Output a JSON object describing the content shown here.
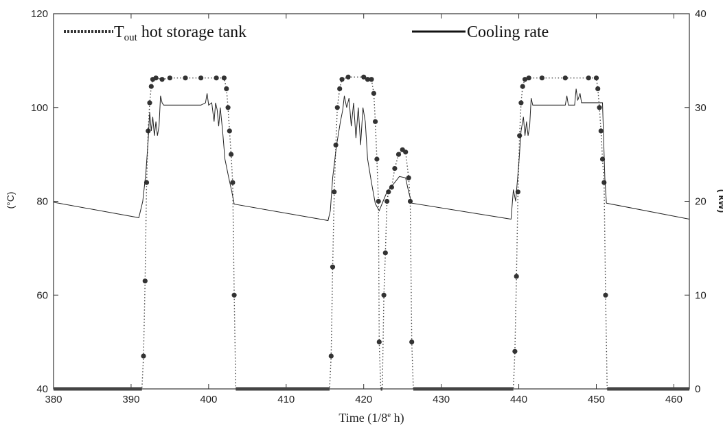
{
  "chart_data": {
    "type": "line",
    "xlabel": "Time (1/8",
    "xlabel_sup": "e",
    "xlabel_tail": " h)",
    "ylabel_left": "(°C)",
    "ylabel_right": "( kW)",
    "xlim": [
      380,
      462
    ],
    "ylim_left": [
      40,
      120
    ],
    "ylim_right": [
      0,
      40
    ],
    "x_ticks": [
      380,
      390,
      400,
      410,
      420,
      430,
      440,
      450,
      460
    ],
    "y_left_ticks": [
      40,
      60,
      80,
      100,
      120
    ],
    "y_right_ticks": [
      0,
      10,
      20,
      30,
      40
    ],
    "grid": false,
    "legend_placement": "top",
    "legend": {
      "tout_main": "T",
      "tout_sub": "out",
      "tout_tail": " hot storage tank",
      "cooling": "Cooling rate"
    },
    "series": [
      {
        "name": "Tout hot storage tank",
        "axis": "left",
        "style": "dotted",
        "points": [
          [
            380,
            40
          ],
          [
            391.4,
            40
          ],
          [
            391.6,
            47
          ],
          [
            391.8,
            63
          ],
          [
            392.0,
            84
          ],
          [
            392.2,
            95
          ],
          [
            392.4,
            101
          ],
          [
            392.6,
            104.5
          ],
          [
            392.8,
            106
          ],
          [
            393.2,
            106.3
          ],
          [
            394,
            106
          ],
          [
            395,
            106.3
          ],
          [
            397,
            106.3
          ],
          [
            399,
            106.3
          ],
          [
            401,
            106.3
          ],
          [
            402.0,
            106.3
          ],
          [
            402.3,
            104
          ],
          [
            402.5,
            100
          ],
          [
            402.7,
            95
          ],
          [
            402.9,
            90
          ],
          [
            403.1,
            84
          ],
          [
            403.3,
            60
          ],
          [
            403.5,
            40
          ],
          [
            415.6,
            40
          ],
          [
            415.8,
            47
          ],
          [
            416.0,
            66
          ],
          [
            416.2,
            82
          ],
          [
            416.4,
            92
          ],
          [
            416.6,
            100
          ],
          [
            416.9,
            104
          ],
          [
            417.2,
            106
          ],
          [
            418,
            106.5
          ],
          [
            420,
            106.5
          ],
          [
            420.5,
            106
          ],
          [
            421.0,
            106
          ],
          [
            421.3,
            103
          ],
          [
            421.5,
            97
          ],
          [
            421.7,
            89
          ],
          [
            421.9,
            80
          ],
          [
            422.0,
            50
          ],
          [
            422.2,
            40
          ],
          [
            422.4,
            40
          ],
          [
            422.6,
            60
          ],
          [
            422.8,
            69
          ],
          [
            423.0,
            80
          ],
          [
            423.2,
            82
          ],
          [
            423.6,
            83
          ],
          [
            424.0,
            87
          ],
          [
            424.5,
            90
          ],
          [
            425.0,
            91
          ],
          [
            425.4,
            90.5
          ],
          [
            425.8,
            85
          ],
          [
            426.0,
            80
          ],
          [
            426.2,
            50
          ],
          [
            426.4,
            40
          ],
          [
            439.3,
            40
          ],
          [
            439.5,
            48
          ],
          [
            439.7,
            64
          ],
          [
            439.9,
            82
          ],
          [
            440.1,
            94
          ],
          [
            440.3,
            101
          ],
          [
            440.5,
            104.5
          ],
          [
            440.8,
            106
          ],
          [
            441.3,
            106.3
          ],
          [
            443,
            106.3
          ],
          [
            446,
            106.3
          ],
          [
            449,
            106.3
          ],
          [
            450.0,
            106.3
          ],
          [
            450.2,
            104
          ],
          [
            450.4,
            100
          ],
          [
            450.6,
            95
          ],
          [
            450.8,
            89
          ],
          [
            451.0,
            84
          ],
          [
            451.2,
            60
          ],
          [
            451.4,
            40
          ],
          [
            462,
            40
          ]
        ]
      },
      {
        "name": "Cooling rate",
        "axis": "left",
        "style": "solid",
        "points": [
          [
            380,
            79.8
          ],
          [
            391.0,
            76.5
          ],
          [
            391.5,
            80
          ],
          [
            391.9,
            86
          ],
          [
            392.2,
            93
          ],
          [
            392.4,
            99
          ],
          [
            392.6,
            95
          ],
          [
            392.8,
            98
          ],
          [
            393.0,
            94
          ],
          [
            393.2,
            97
          ],
          [
            393.4,
            94
          ],
          [
            393.6,
            96
          ],
          [
            393.8,
            102.5
          ],
          [
            394.0,
            101
          ],
          [
            394.2,
            100.5
          ],
          [
            399,
            100.5
          ],
          [
            399.6,
            101
          ],
          [
            399.8,
            103
          ],
          [
            400.0,
            100.5
          ],
          [
            400.4,
            101
          ],
          [
            400.7,
            97
          ],
          [
            400.9,
            101
          ],
          [
            401.1,
            99.5
          ],
          [
            401.3,
            96
          ],
          [
            401.5,
            100
          ],
          [
            401.8,
            95
          ],
          [
            402.1,
            89
          ],
          [
            402.6,
            85
          ],
          [
            403.0,
            82
          ],
          [
            403.3,
            79.4
          ],
          [
            415.4,
            75.9
          ],
          [
            415.7,
            78
          ],
          [
            416.0,
            85
          ],
          [
            416.5,
            92
          ],
          [
            417.0,
            97
          ],
          [
            417.3,
            99.5
          ],
          [
            417.5,
            102.5
          ],
          [
            417.8,
            100
          ],
          [
            418.1,
            102
          ],
          [
            418.4,
            96
          ],
          [
            418.7,
            101
          ],
          [
            419.0,
            93.5
          ],
          [
            419.3,
            100
          ],
          [
            419.6,
            92
          ],
          [
            419.9,
            100
          ],
          [
            420.2,
            97
          ],
          [
            420.5,
            89
          ],
          [
            421.0,
            84
          ],
          [
            421.5,
            79.5
          ],
          [
            422.0,
            78
          ],
          [
            422.5,
            80
          ],
          [
            423.0,
            82
          ],
          [
            424.0,
            84
          ],
          [
            424.6,
            85.3
          ],
          [
            425.4,
            85
          ],
          [
            425.8,
            82
          ],
          [
            426.2,
            79.6
          ],
          [
            439.0,
            76.2
          ],
          [
            439.3,
            82.5
          ],
          [
            439.6,
            80
          ],
          [
            440.0,
            88
          ],
          [
            440.3,
            95
          ],
          [
            440.6,
            98
          ],
          [
            440.8,
            94
          ],
          [
            441.0,
            97
          ],
          [
            441.2,
            94
          ],
          [
            441.4,
            96
          ],
          [
            441.6,
            102
          ],
          [
            441.8,
            100.5
          ],
          [
            446.0,
            100.5
          ],
          [
            446.2,
            102.5
          ],
          [
            446.4,
            100.5
          ],
          [
            447.2,
            100.5
          ],
          [
            447.4,
            104
          ],
          [
            447.6,
            101.5
          ],
          [
            447.9,
            103
          ],
          [
            448.1,
            101
          ],
          [
            450.8,
            101
          ],
          [
            451.1,
            85
          ],
          [
            451.3,
            79.6
          ],
          [
            462,
            76.2
          ]
        ]
      }
    ]
  }
}
